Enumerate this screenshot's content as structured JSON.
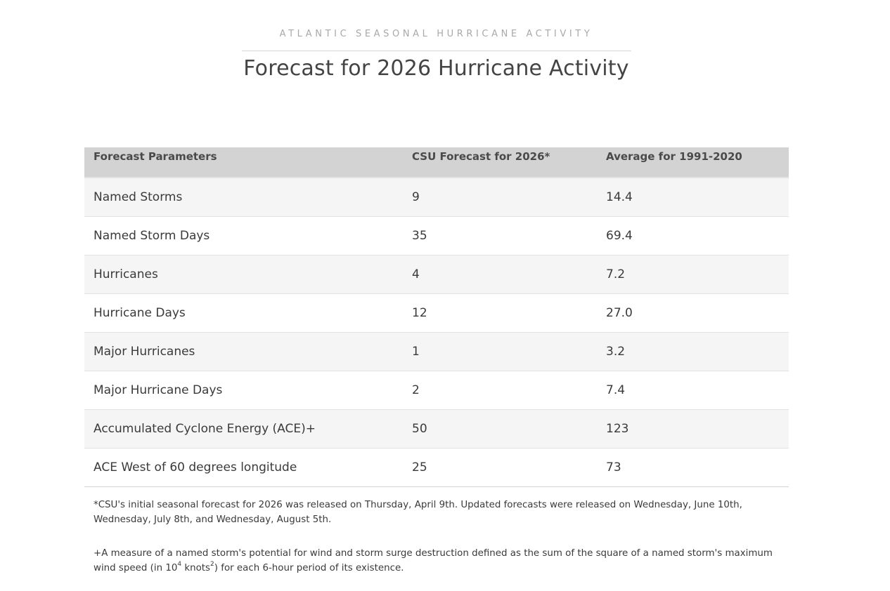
{
  "header": {
    "eyebrow": "ATLANTIC SEASONAL HURRICANE ACTIVITY",
    "title": "Forecast for 2026 Hurricane Activity"
  },
  "table": {
    "columns": [
      "Forecast Parameters",
      "CSU Forecast for 2026*",
      "Average for 1991-2020"
    ],
    "rows": [
      [
        "Named Storms",
        "9",
        "14.4"
      ],
      [
        "Named Storm Days",
        "35",
        "69.4"
      ],
      [
        "Hurricanes",
        "4",
        "7.2"
      ],
      [
        "Hurricane Days",
        "12",
        "27.0"
      ],
      [
        "Major Hurricanes",
        "1",
        "3.2"
      ],
      [
        "Major Hurricane Days",
        "2",
        "7.4"
      ],
      [
        "Accumulated Cyclone Energy (ACE)+",
        "50",
        "123"
      ],
      [
        "ACE West of 60 degrees longitude",
        "25",
        "73"
      ]
    ]
  },
  "footnotes": {
    "forecast_note": "*CSU's initial seasonal forecast for 2026 was released on Thursday, April 9th. Updated forecasts were released on Wednesday, June 10th, Wednesday, July 8th, and Wednesday, August 5th.",
    "ace_note_part1": "+A measure of a named storm's potential for wind and storm surge destruction defined as the sum of the square of a named storm's maximum wind speed (in 10",
    "ace_note_exp1": "4",
    "ace_note_part2": " knots",
    "ace_note_exp2": "2",
    "ace_note_part3": ") for each 6-hour period of its existence."
  }
}
